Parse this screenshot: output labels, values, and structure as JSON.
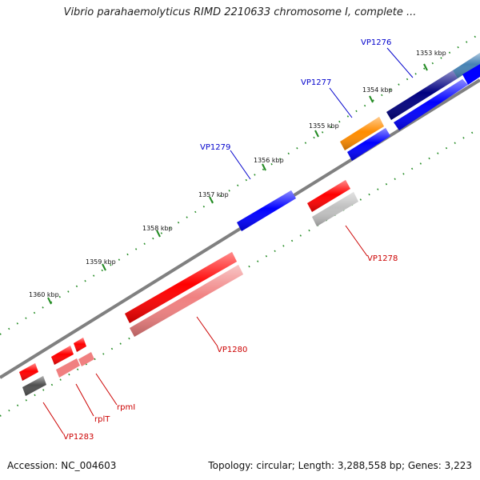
{
  "title": "Vibrio parahaemolyticus RIMD 2210633 chromosome I, complete ...",
  "footer": {
    "accession": "Accession: NC_004603",
    "summary": "Topology: circular; Length: 3,288,558 bp; Genes: 3,223"
  },
  "colors": {
    "forward_gene": "#0000ff",
    "forward_gene_dark": "#000080",
    "forward_gene_light": "#4682b4",
    "forward_orange": "#ff8c00",
    "reverse_gene": "#ff0000",
    "reverse_light": "#f08080",
    "reverse_grey": "#c0c0c0",
    "reverse_dark": "#505050",
    "backbone": "#808080",
    "tick": "#228b22",
    "forward_label": "#0000cc",
    "reverse_label": "#cc0000"
  },
  "ticks": [
    "1353 kbp",
    "1354 kbp",
    "1355 kbp",
    "1356 kbp",
    "1357 kbp",
    "1358 kbp",
    "1359 kbp",
    "1360 kbp"
  ],
  "labels": {
    "forward": [
      "VP1276",
      "VP1277",
      "VP1279"
    ],
    "reverse": [
      "VP1278",
      "VP1280",
      "rpmI",
      "rplT",
      "VP1283"
    ]
  }
}
